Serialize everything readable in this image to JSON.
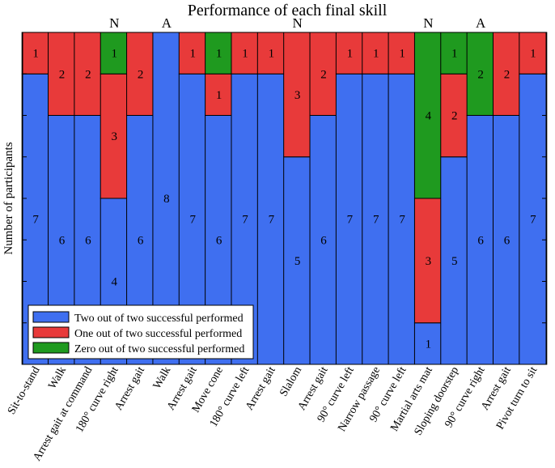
{
  "chart_data": {
    "type": "bar",
    "stacked": true,
    "title": "Performance of each final skill",
    "ylabel": "Number of participants",
    "xlabel": "",
    "ylim": [
      0,
      8
    ],
    "grid": false,
    "legend_position": "bottom-left",
    "categories": [
      "Sit-to-stand",
      "Walk",
      "Arrest gait at command",
      "180° curve right",
      "Arrest gait",
      "Walk",
      "Arrest gait",
      "Move cone",
      "180° curve left",
      "Arrest gait",
      "Slalom",
      "Arrest gait",
      "90° curve left",
      "Narrow passage",
      "90° curve left",
      "Martial arts mat",
      "Sloping doorstep",
      "90° curve right",
      "Arrest gait",
      "Pivot turn to sit"
    ],
    "top_annotations": [
      "",
      "",
      "",
      "N",
      "",
      "A",
      "",
      "",
      "",
      "",
      "N",
      "",
      "",
      "",
      "",
      "N",
      "",
      "A",
      "",
      ""
    ],
    "series": [
      {
        "name": "Two out of two successful performed",
        "color": "#3f6ff0",
        "values": [
          7,
          6,
          6,
          4,
          6,
          8,
          7,
          6,
          7,
          7,
          5,
          6,
          7,
          7,
          7,
          1,
          5,
          6,
          6,
          7
        ]
      },
      {
        "name": "One out of two successful performed",
        "color": "#e83a3a",
        "values": [
          1,
          2,
          2,
          3,
          2,
          0,
          1,
          1,
          1,
          1,
          3,
          2,
          1,
          1,
          1,
          3,
          2,
          0,
          2,
          1
        ]
      },
      {
        "name": "Zero out of two successful performed",
        "color": "#1f9a1f",
        "values": [
          0,
          0,
          0,
          1,
          0,
          0,
          0,
          1,
          0,
          0,
          0,
          0,
          0,
          0,
          0,
          4,
          1,
          2,
          0,
          0
        ]
      }
    ]
  }
}
